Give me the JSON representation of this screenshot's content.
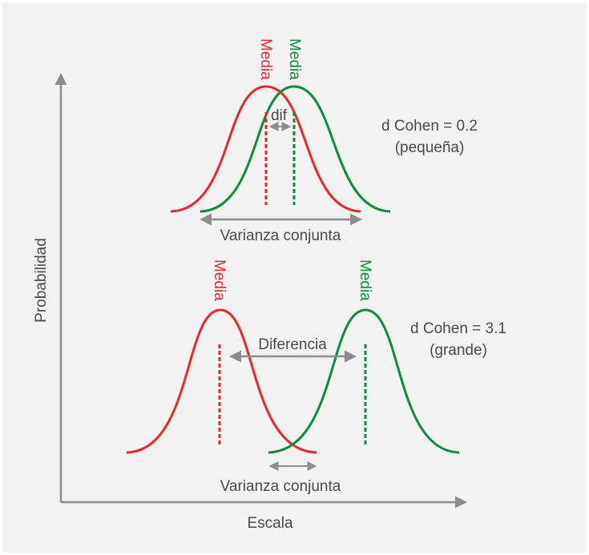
{
  "axes": {
    "y_label": "Probabilidad",
    "x_label": "Escala"
  },
  "colors": {
    "red": "#e8262b",
    "green": "#0f8c3c",
    "gray_arrow": "#8c8c8c",
    "axis": "#8c8c8c",
    "text": "#4a4a4a"
  },
  "top": {
    "mean_label_red": "Media",
    "mean_label_green": "Media",
    "diff_label": "dif",
    "variance_label": "Varianza conjunta",
    "cohen_line1": "d Cohen = 0.2",
    "cohen_line2": "(pequeña)"
  },
  "bottom": {
    "mean_label_red": "Media",
    "mean_label_green": "Media",
    "diff_label": "Diferencia",
    "variance_label": "Varianza conjunta",
    "cohen_line1": "d Cohen = 3.1",
    "cohen_line2": "(grande)"
  }
}
